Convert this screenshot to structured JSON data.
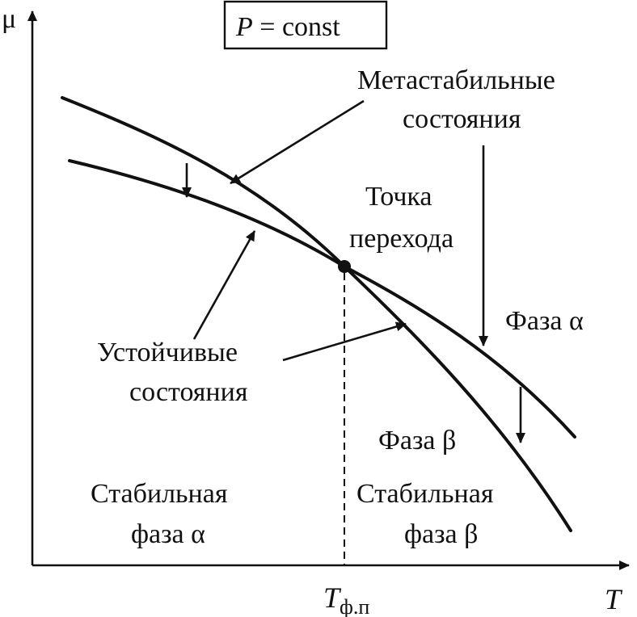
{
  "axes": {
    "y_label": "μ",
    "x_label": "T",
    "x_tick_main": "T",
    "x_tick_sub": "ф.п"
  },
  "condition": {
    "italic": "P",
    "rest": " = const"
  },
  "labels": {
    "metastable_line1": "Метастабильные",
    "metastable_line2": "состояния",
    "transition_line1": "Точка",
    "transition_line2": "перехода",
    "phase_alpha": "Фаза α",
    "phase_beta": "Фаза β",
    "stable_states_line1": "Устойчивые",
    "stable_states_line2": "состояния",
    "stable_alpha_line1": "Стабильная",
    "stable_alpha_line2": "фаза α",
    "stable_beta_line1": "Стабильная",
    "stable_beta_line2": "фаза β"
  }
}
